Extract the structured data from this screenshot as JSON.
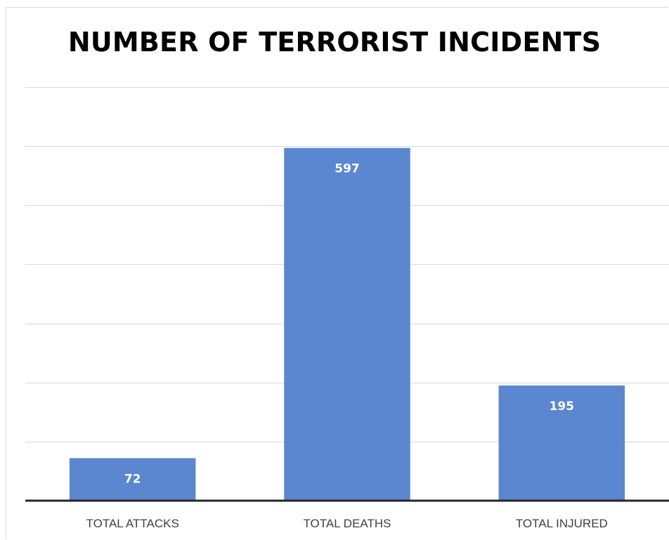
{
  "chart_data": {
    "type": "bar",
    "title": "NUMBER OF TERRORIST INCIDENTS",
    "categories": [
      "TOTAL ATTACKS",
      "TOTAL DEATHS",
      "TOTAL INJURED"
    ],
    "values": [
      72,
      597,
      195
    ],
    "ylim": [
      0,
      700
    ],
    "grid": true,
    "bar_color": "#5b87d0",
    "data_labels": true
  }
}
